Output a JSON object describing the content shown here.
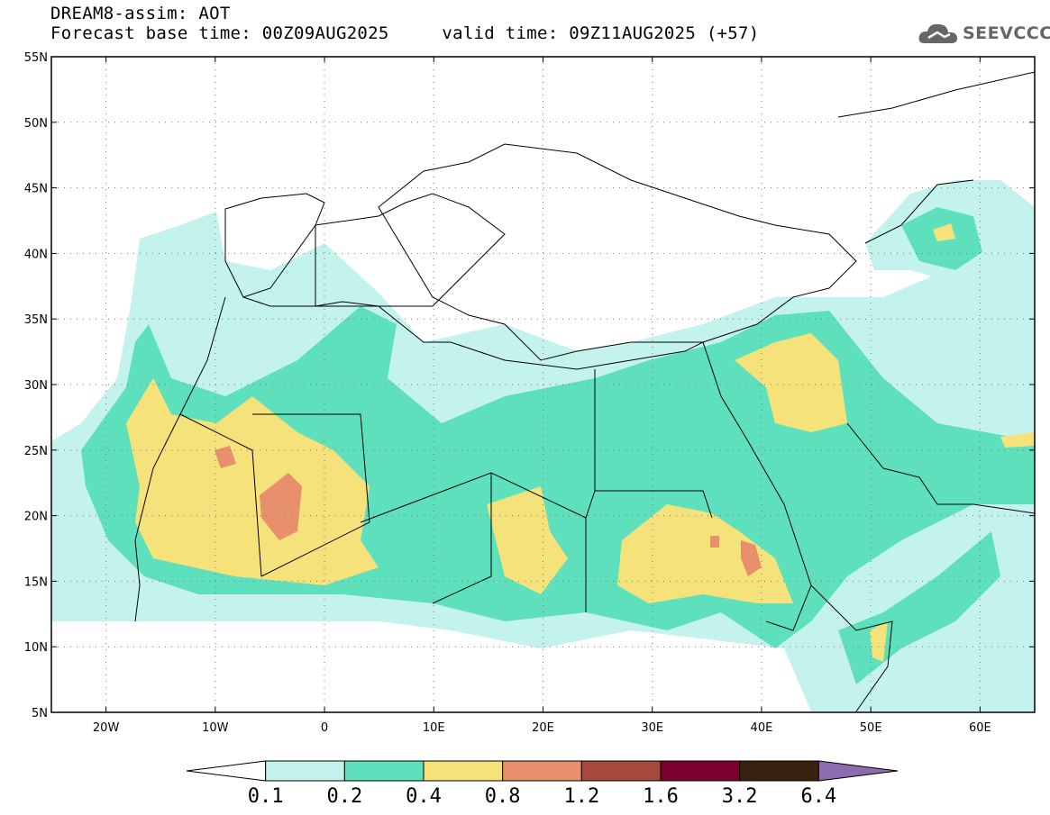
{
  "header": {
    "line1": "DREAM8-assim: AOT",
    "line2": "Forecast base time: 00Z09AUG2025     valid time: 09Z11AUG2025 (+57)"
  },
  "logo": {
    "text": "SEEVCCC",
    "icon": "cloud-icon",
    "color": "#666666"
  },
  "axes": {
    "lat_labels": [
      "55N",
      "50N",
      "45N",
      "40N",
      "35N",
      "30N",
      "25N",
      "20N",
      "15N",
      "10N",
      "5N"
    ],
    "lon_labels": [
      "20W",
      "10W",
      "0",
      "10E",
      "20E",
      "30E",
      "40E",
      "50E",
      "60E"
    ],
    "lon_range": [
      -25,
      65
    ],
    "lat_range": [
      5,
      55
    ]
  },
  "colorbar": {
    "labels": [
      "0.1",
      "0.2",
      "0.4",
      "0.8",
      "1.2",
      "1.6",
      "3.2",
      "6.4"
    ],
    "colors": [
      "#ffffff",
      "#c4f2ec",
      "#5fe0bd",
      "#f5e27a",
      "#e88f6c",
      "#a74a3e",
      "#7a0030",
      "#3a2210",
      "#8c6bb0"
    ]
  }
}
